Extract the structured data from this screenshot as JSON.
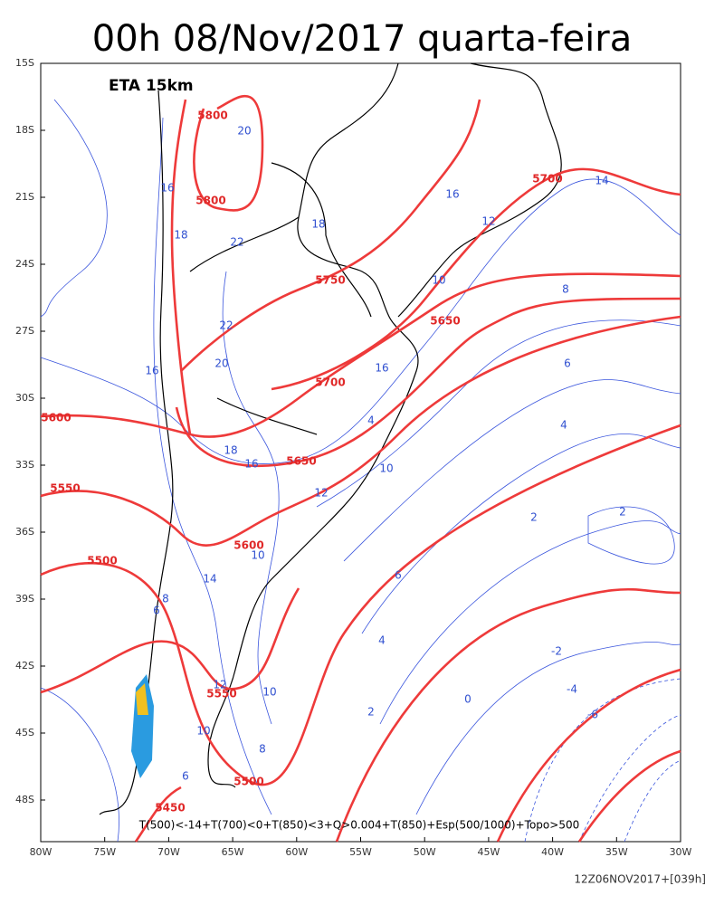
{
  "header": {
    "title": "00h 08/Nov/2017 quarta-feira"
  },
  "map": {
    "model_label": "ETA 15km",
    "lat_labels": [
      "15S",
      "18S",
      "21S",
      "24S",
      "27S",
      "30S",
      "33S",
      "36S",
      "39S",
      "42S",
      "45S",
      "48S"
    ],
    "lon_labels": [
      "80W",
      "75W",
      "70W",
      "65W",
      "60W",
      "55W",
      "50W",
      "45W",
      "40W",
      "35W",
      "30W"
    ],
    "red_contour_labels": [
      "5800",
      "5800",
      "5750",
      "5700",
      "5650",
      "5700",
      "5600",
      "5650",
      "5550",
      "5600",
      "5500",
      "5550",
      "5500",
      "5450"
    ],
    "blue_contour_labels": [
      "20",
      "16",
      "18",
      "22",
      "18",
      "14",
      "12",
      "16",
      "10",
      "8",
      "22",
      "20",
      "16",
      "16",
      "6",
      "4",
      "4",
      "18",
      "16",
      "12",
      "10",
      "2",
      "2",
      "14",
      "10",
      "8",
      "6",
      "6",
      "4",
      "-2",
      "-4",
      "-6",
      "0",
      "2",
      "10",
      "12",
      "10",
      "8",
      "6"
    ],
    "legend": "T(500)<-14+T(700)<0+T(850)<3+Q>0.004+T(850)+Esp(500/1000)+Topo>500"
  },
  "footer": "12Z06NOV2017+[039h]"
}
